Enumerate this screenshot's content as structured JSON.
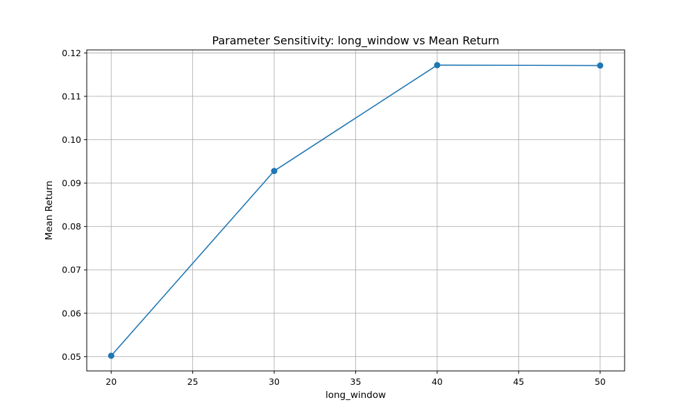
{
  "chart_data": {
    "type": "line",
    "title": "Parameter Sensitivity: long_window vs Mean Return",
    "xlabel": "long_window",
    "ylabel": "Mean Return",
    "x": [
      20,
      30,
      40,
      50
    ],
    "series": [
      {
        "values": [
          0.0502,
          0.0928,
          0.1172,
          0.1171
        ],
        "color": "#1f77b4",
        "marker": "circle"
      }
    ],
    "xlim": [
      18.5,
      51.5
    ],
    "ylim": [
      0.0467,
      0.1207
    ],
    "xticks": [
      20,
      25,
      30,
      35,
      40,
      45,
      50
    ],
    "yticks": [
      0.05,
      0.06,
      0.07,
      0.08,
      0.09,
      0.1,
      0.11,
      0.12
    ],
    "ytick_decimals": 2,
    "grid": true,
    "colors": {
      "grid": "#b0b0b0",
      "axis": "#000000"
    }
  }
}
